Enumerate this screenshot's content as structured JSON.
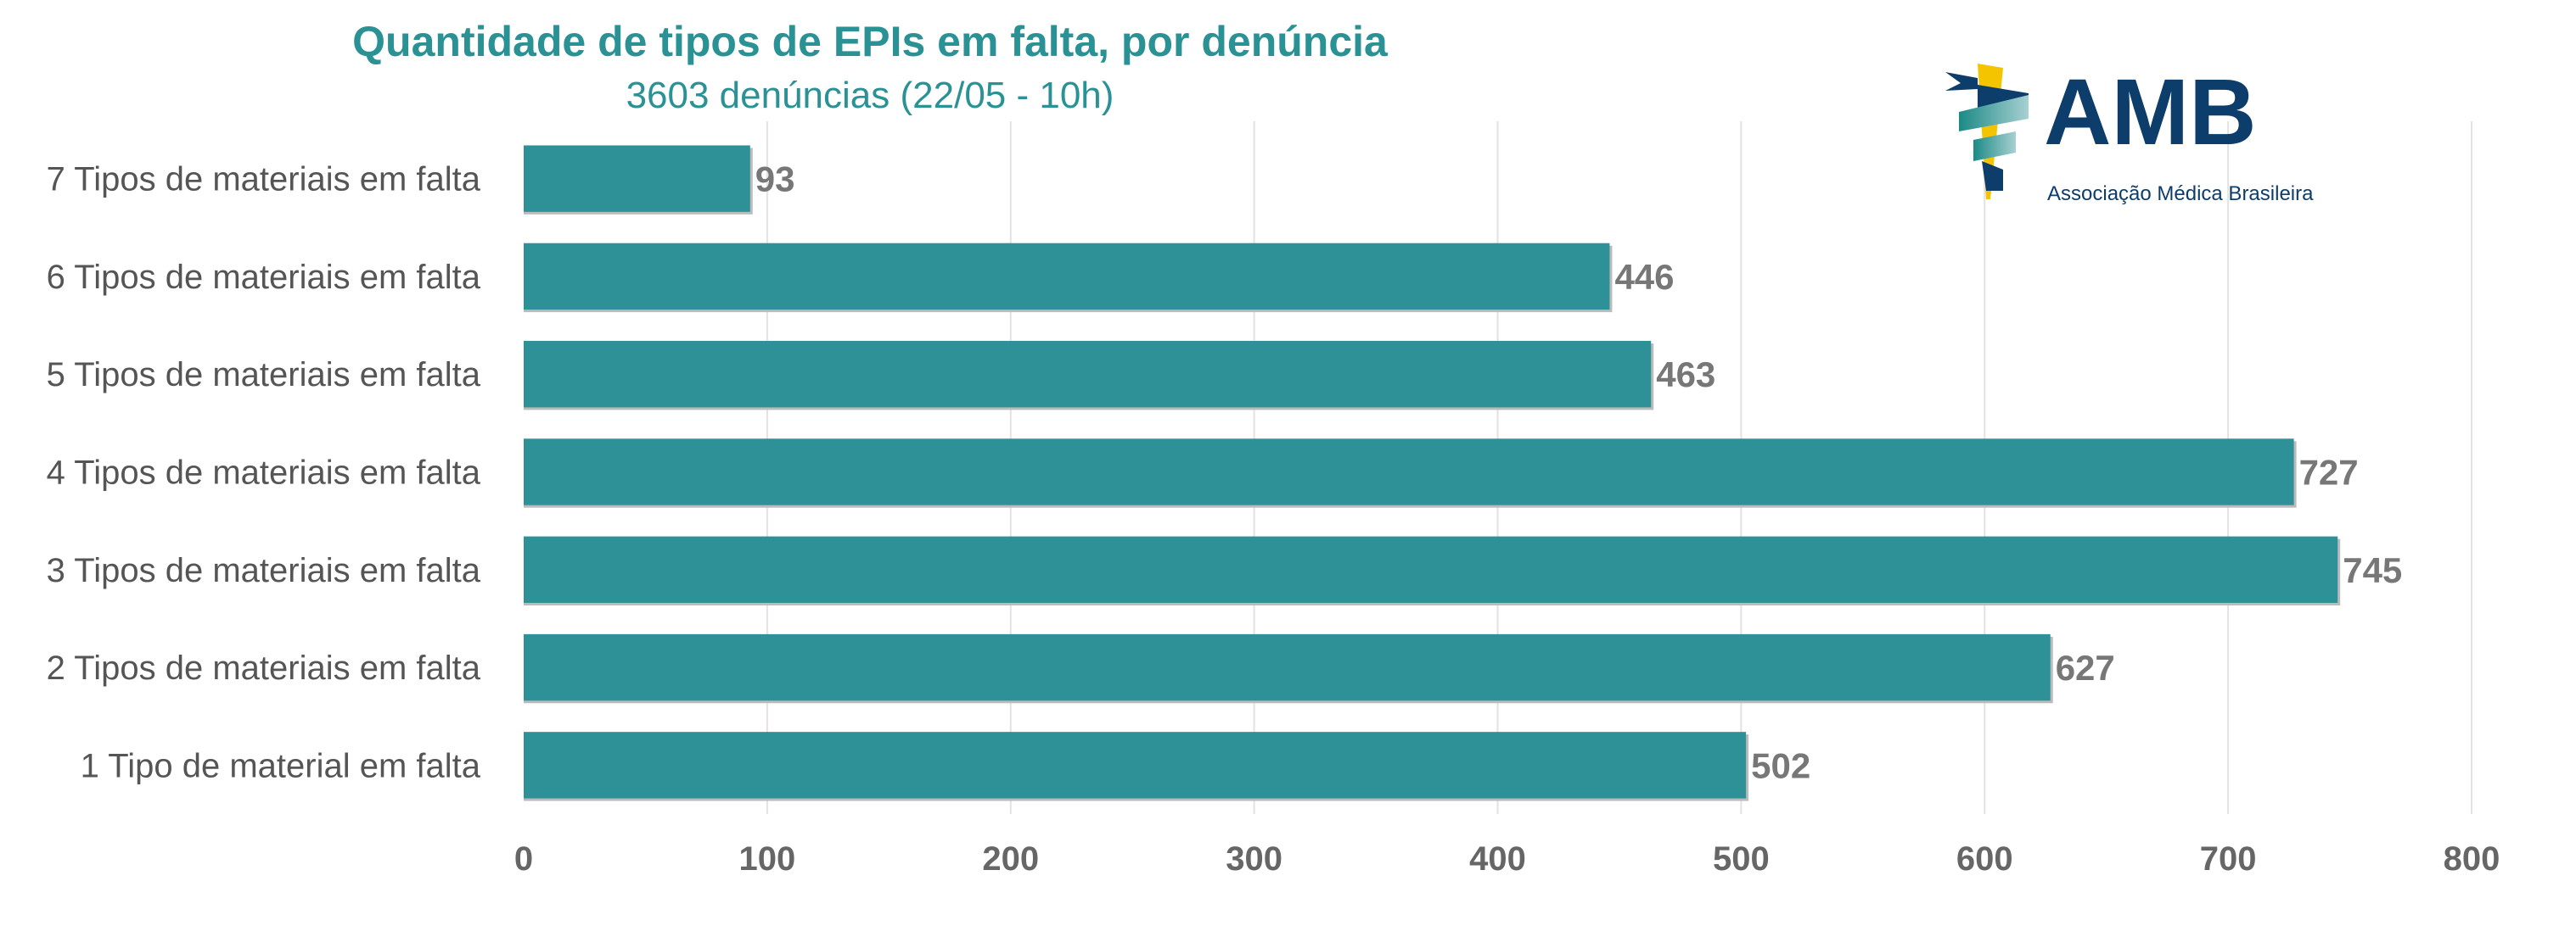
{
  "chart_data": {
    "type": "bar",
    "orientation": "horizontal",
    "title": "Quantidade de tipos de EPIs em falta, por denúncia",
    "subtitle": "3603 denúncias (22/05 - 10h)",
    "categories": [
      "7 Tipos de materiais em falta",
      "6 Tipos de materiais em falta",
      "5 Tipos de materiais em falta",
      "4 Tipos de materiais em falta",
      "3 Tipos de materiais em falta",
      "2 Tipos de materiais em falta",
      "1 Tipo de material em falta"
    ],
    "values": [
      93,
      446,
      463,
      727,
      745,
      627,
      502
    ],
    "xlim": [
      0,
      800
    ],
    "xticks": [
      0,
      100,
      200,
      300,
      400,
      500,
      600,
      700,
      800
    ],
    "grid": true,
    "xlabel": "",
    "ylabel": "",
    "bar_color": "#2f9198"
  },
  "logo": {
    "name": "AMB",
    "tagline": "Associação Médica Brasileira"
  }
}
